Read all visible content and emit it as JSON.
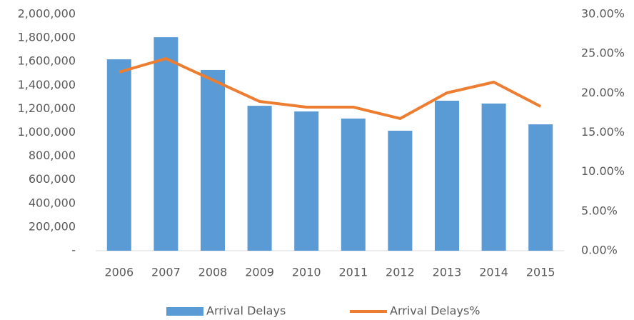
{
  "chart_data": {
    "type": "bar-line",
    "categories": [
      "2006",
      "2007",
      "2008",
      "2009",
      "2010",
      "2011",
      "2012",
      "2013",
      "2014",
      "2015"
    ],
    "series": [
      {
        "name": "Arrival Delays",
        "color": "#5b9bd5",
        "type": "bar",
        "values": [
          1619000,
          1806000,
          1529000,
          1226000,
          1178000,
          1118000,
          1015000,
          1269000,
          1245000,
          1069000
        ]
      },
      {
        "name": "Arrival Delays%",
        "color": "#ed7d31",
        "type": "line",
        "axis": "y2",
        "values": [
          22.66,
          24.38,
          21.66,
          18.94,
          18.22,
          18.22,
          16.77,
          20.03,
          21.39,
          18.31
        ]
      }
    ],
    "ylim": [
      0,
      2000000
    ],
    "yticks": [
      {
        "value": 0,
        "label": "-"
      },
      {
        "value": 200000,
        "label": "200,000"
      },
      {
        "value": 400000,
        "label": "400,000"
      },
      {
        "value": 600000,
        "label": "600,000"
      },
      {
        "value": 800000,
        "label": "800,000"
      },
      {
        "value": 1000000,
        "label": "1,000,000"
      },
      {
        "value": 1200000,
        "label": "1,200,000"
      },
      {
        "value": 1400000,
        "label": "1,400,000"
      },
      {
        "value": 1600000,
        "label": "1,600,000"
      },
      {
        "value": 1800000,
        "label": "1,800,000"
      },
      {
        "value": 2000000,
        "label": "2,000,000"
      }
    ],
    "y2lim": [
      0,
      30
    ],
    "y2ticks": [
      {
        "value": 0,
        "label": "0.00%"
      },
      {
        "value": 5,
        "label": "5.00%"
      },
      {
        "value": 10,
        "label": "10.00%"
      },
      {
        "value": 15,
        "label": "15.00%"
      },
      {
        "value": 20,
        "label": "20.00%"
      },
      {
        "value": 25,
        "label": "25.00%"
      },
      {
        "value": 30,
        "label": "30.00%"
      }
    ],
    "legend": "bottom"
  }
}
